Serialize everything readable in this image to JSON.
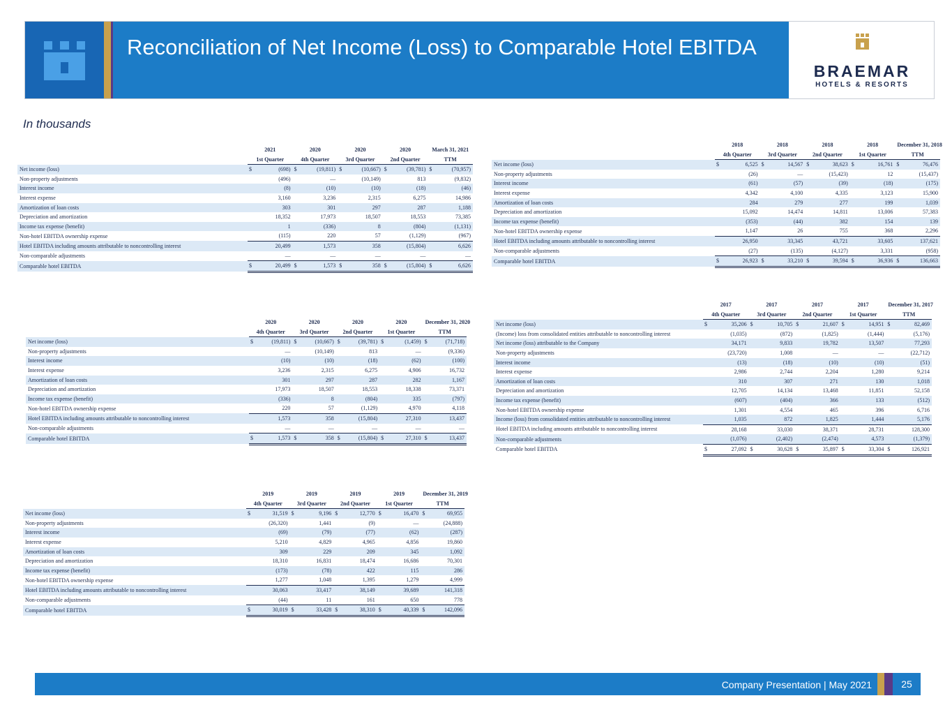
{
  "header": {
    "title": "Reconciliation of Net Income (Loss) to Comparable Hotel EBITDA",
    "logo_name": "BRAEMAR",
    "logo_tagline": "HOTELS & RESORTS"
  },
  "subtitle": "In thousands",
  "tables": [
    {
      "years": [
        "2021",
        "2020",
        "2020",
        "2020",
        "March 31, 2021"
      ],
      "quarters": [
        "1st Quarter",
        "4th Quarter",
        "3rd Quarter",
        "2nd Quarter",
        "TTM"
      ],
      "rows": [
        {
          "label": "Net income (loss)",
          "dollar": "$",
          "values": [
            "(698)",
            "(19,811)",
            "(10,667)",
            "(39,781)",
            "(70,957)"
          ]
        },
        {
          "label": "Non-property adjustments",
          "values": [
            "(496)",
            "—",
            "(10,149)",
            "813",
            "(9,832)"
          ]
        },
        {
          "label": "Interest income",
          "values": [
            "(8)",
            "(10)",
            "(10)",
            "(18)",
            "(46)"
          ]
        },
        {
          "label": "Interest expense",
          "values": [
            "3,160",
            "3,236",
            "2,315",
            "6,275",
            "14,986"
          ]
        },
        {
          "label": "Amortization of loan costs",
          "values": [
            "303",
            "301",
            "297",
            "287",
            "1,188"
          ]
        },
        {
          "label": "Depreciation and amortization",
          "values": [
            "18,352",
            "17,973",
            "18,507",
            "18,553",
            "73,385"
          ]
        },
        {
          "label": "Income tax expense (benefit)",
          "values": [
            "1",
            "(336)",
            "8",
            "(804)",
            "(1,131)"
          ]
        },
        {
          "label": "Non-hotel EBITDA ownership expense",
          "values": [
            "(115)",
            "220",
            "57",
            "(1,129)",
            "(967)"
          ]
        },
        {
          "label": "Hotel EBITDA including amounts attributable to noncontrolling interest",
          "values": [
            "20,499",
            "1,573",
            "358",
            "(15,804)",
            "6,626"
          ]
        },
        {
          "label": "Non-comparable adjustments",
          "values": [
            "—",
            "—",
            "—",
            "—",
            "—"
          ]
        },
        {
          "label": "Comparable hotel EBITDA",
          "dollar": "$",
          "values": [
            "20,499",
            "1,573",
            "358",
            "(15,804)",
            "6,626"
          ]
        }
      ]
    },
    {
      "years": [
        "2018",
        "2018",
        "2018",
        "2018",
        "December 31, 2018"
      ],
      "quarters": [
        "4th Quarter",
        "3rd Quarter",
        "2nd Quarter",
        "1st Quarter",
        "TTM"
      ],
      "rows": [
        {
          "label": "Net income (loss)",
          "dollar": "$",
          "values": [
            "6,525",
            "14,567",
            "38,623",
            "16,761",
            "76,476"
          ]
        },
        {
          "label": "Non-property adjustments",
          "values": [
            "(26)",
            "—",
            "(15,423)",
            "12",
            "(15,437)"
          ]
        },
        {
          "label": "Interest income",
          "values": [
            "(61)",
            "(57)",
            "(39)",
            "(18)",
            "(175)"
          ]
        },
        {
          "label": "Interest expense",
          "values": [
            "4,342",
            "4,100",
            "4,335",
            "3,123",
            "15,900"
          ]
        },
        {
          "label": "Amortization of loan costs",
          "values": [
            "284",
            "279",
            "277",
            "199",
            "1,039"
          ]
        },
        {
          "label": "Depreciation and amortization",
          "values": [
            "15,092",
            "14,474",
            "14,811",
            "13,006",
            "57,383"
          ]
        },
        {
          "label": "Income tax expense (benefit)",
          "values": [
            "(353)",
            "(44)",
            "382",
            "154",
            "139"
          ]
        },
        {
          "label": "Non-hotel EBITDA ownership expense",
          "values": [
            "1,147",
            "26",
            "755",
            "368",
            "2,296"
          ]
        },
        {
          "label": "Hotel EBITDA including amounts attributable to noncontrolling interest",
          "values": [
            "26,950",
            "33,345",
            "43,721",
            "33,605",
            "137,621"
          ]
        },
        {
          "label": "Non-comparable adjustments",
          "values": [
            "(27)",
            "(135)",
            "(4,127)",
            "3,331",
            "(958)"
          ]
        },
        {
          "label": "Comparable hotel EBITDA",
          "dollar": "$",
          "values": [
            "26,923",
            "33,210",
            "39,594",
            "36,936",
            "136,663"
          ]
        }
      ]
    },
    {
      "years": [
        "2020",
        "2020",
        "2020",
        "2020",
        "December 31, 2020"
      ],
      "quarters": [
        "4th Quarter",
        "3rd Quarter",
        "2nd Quarter",
        "1st Quarter",
        "TTM"
      ],
      "rows": [
        {
          "label": "Net income (loss)",
          "dollar": "$",
          "values": [
            "(19,811)",
            "(10,667)",
            "(39,781)",
            "(1,459)",
            "(71,718)"
          ]
        },
        {
          "label": "Non-property adjustments",
          "values": [
            "—",
            "(10,149)",
            "813",
            "—",
            "(9,336)"
          ]
        },
        {
          "label": "Interest income",
          "values": [
            "(10)",
            "(10)",
            "(18)",
            "(62)",
            "(100)"
          ]
        },
        {
          "label": "Interest expense",
          "values": [
            "3,236",
            "2,315",
            "6,275",
            "4,906",
            "16,732"
          ]
        },
        {
          "label": "Amortization of loan costs",
          "values": [
            "301",
            "297",
            "287",
            "282",
            "1,167"
          ]
        },
        {
          "label": "Depreciation and amortization",
          "values": [
            "17,973",
            "18,507",
            "18,553",
            "18,338",
            "73,371"
          ]
        },
        {
          "label": "Income tax expense (benefit)",
          "values": [
            "(336)",
            "8",
            "(804)",
            "335",
            "(797)"
          ]
        },
        {
          "label": "Non-hotel EBITDA ownership expense",
          "values": [
            "220",
            "57",
            "(1,129)",
            "4,970",
            "4,118"
          ]
        },
        {
          "label": "Hotel EBITDA including amounts attributable to noncontrolling interest",
          "values": [
            "1,573",
            "358",
            "(15,804)",
            "27,310",
            "13,437"
          ]
        },
        {
          "label": "Non-comparable adjustments",
          "values": [
            "—",
            "—",
            "—",
            "—",
            "—"
          ]
        },
        {
          "label": "Comparable hotel EBITDA",
          "dollar": "$",
          "values": [
            "1,573",
            "358",
            "(15,804)",
            "27,310",
            "13,437"
          ]
        }
      ]
    },
    {
      "years": [
        "2017",
        "2017",
        "2017",
        "2017",
        "December 31, 2017"
      ],
      "quarters": [
        "4th Quarter",
        "3rd Quarter",
        "2nd Quarter",
        "1st Quarter",
        "TTM"
      ],
      "rows": [
        {
          "label": "Net income (loss)",
          "dollar": "$",
          "values": [
            "35,206",
            "10,705",
            "21,607",
            "14,951",
            "82,469"
          ]
        },
        {
          "label": "(Income) loss from consolidated entities attributable to noncontrolling interest",
          "values": [
            "(1,035)",
            "(872)",
            "(1,825)",
            "(1,444)",
            "(5,176)"
          ]
        },
        {
          "label": "Net income (loss) attributable to the Company",
          "values": [
            "34,171",
            "9,833",
            "19,782",
            "13,507",
            "77,293"
          ]
        },
        {
          "label": "Non-property adjustments",
          "values": [
            "(23,720)",
            "1,008",
            "—",
            "—",
            "(22,712)"
          ]
        },
        {
          "label": "Interest income",
          "values": [
            "(13)",
            "(18)",
            "(10)",
            "(10)",
            "(51)"
          ]
        },
        {
          "label": "Interest expense",
          "values": [
            "2,986",
            "2,744",
            "2,204",
            "1,280",
            "9,214"
          ]
        },
        {
          "label": "Amortization of loan costs",
          "values": [
            "310",
            "307",
            "271",
            "130",
            "1,018"
          ]
        },
        {
          "label": "Depreciation and amortization",
          "values": [
            "12,705",
            "14,134",
            "13,468",
            "11,851",
            "52,158"
          ]
        },
        {
          "label": "Income tax expense (benefit)",
          "values": [
            "(607)",
            "(404)",
            "366",
            "133",
            "(512)"
          ]
        },
        {
          "label": "Non-hotel EBITDA ownership expense",
          "values": [
            "1,301",
            "4,554",
            "465",
            "396",
            "6,716"
          ]
        },
        {
          "label": "Income (loss) from consolidated entities attributable to noncontrolling interest",
          "values": [
            "1,035",
            "872",
            "1,825",
            "1,444",
            "5,176"
          ]
        },
        {
          "label": "Hotel EBITDA including amounts attributable to noncontrolling interest",
          "values": [
            "28,168",
            "33,030",
            "38,371",
            "28,731",
            "128,300"
          ]
        },
        {
          "label": "Non-comparable adjustments",
          "values": [
            "(1,076)",
            "(2,402)",
            "(2,474)",
            "4,573",
            "(1,379)"
          ]
        },
        {
          "label": "Comparable hotel EBITDA",
          "dollar": "$",
          "values": [
            "27,092",
            "30,628",
            "35,897",
            "33,304",
            "126,921"
          ]
        }
      ]
    },
    {
      "years": [
        "2019",
        "2019",
        "2019",
        "2019",
        "December 31, 2019"
      ],
      "quarters": [
        "4th Quarter",
        "3rd Quarter",
        "2nd Quarter",
        "1st Quarter",
        "TTM"
      ],
      "rows": [
        {
          "label": "Net income (loss)",
          "dollar": "$",
          "values": [
            "31,519",
            "9,196",
            "12,770",
            "16,470",
            "69,955"
          ]
        },
        {
          "label": "Non-property adjustments",
          "values": [
            "(26,320)",
            "1,441",
            "(9)",
            "—",
            "(24,888)"
          ]
        },
        {
          "label": "Interest income",
          "values": [
            "(69)",
            "(79)",
            "(77)",
            "(62)",
            "(287)"
          ]
        },
        {
          "label": "Interest expense",
          "values": [
            "5,210",
            "4,829",
            "4,965",
            "4,856",
            "19,860"
          ]
        },
        {
          "label": "Amortization of loan costs",
          "values": [
            "309",
            "229",
            "209",
            "345",
            "1,092"
          ]
        },
        {
          "label": "Depreciation and amortization",
          "values": [
            "18,310",
            "16,831",
            "18,474",
            "16,686",
            "70,301"
          ]
        },
        {
          "label": "Income tax expense (benefit)",
          "values": [
            "(173)",
            "(78)",
            "422",
            "115",
            "286"
          ]
        },
        {
          "label": "Non-hotel EBITDA ownership expense",
          "values": [
            "1,277",
            "1,048",
            "1,395",
            "1,279",
            "4,999"
          ]
        },
        {
          "label": "Hotel EBITDA including amounts attributable to noncontrolling interest",
          "values": [
            "30,063",
            "33,417",
            "38,149",
            "39,689",
            "141,318"
          ]
        },
        {
          "label": "Non-comparable adjustments",
          "values": [
            "(44)",
            "11",
            "161",
            "650",
            "778"
          ]
        },
        {
          "label": "Comparable hotel EBITDA",
          "dollar": "$",
          "values": [
            "30,019",
            "33,428",
            "38,310",
            "40,339",
            "142,096"
          ]
        }
      ]
    }
  ],
  "footer": {
    "text": "Company Presentation | May 2021",
    "page": "25"
  }
}
